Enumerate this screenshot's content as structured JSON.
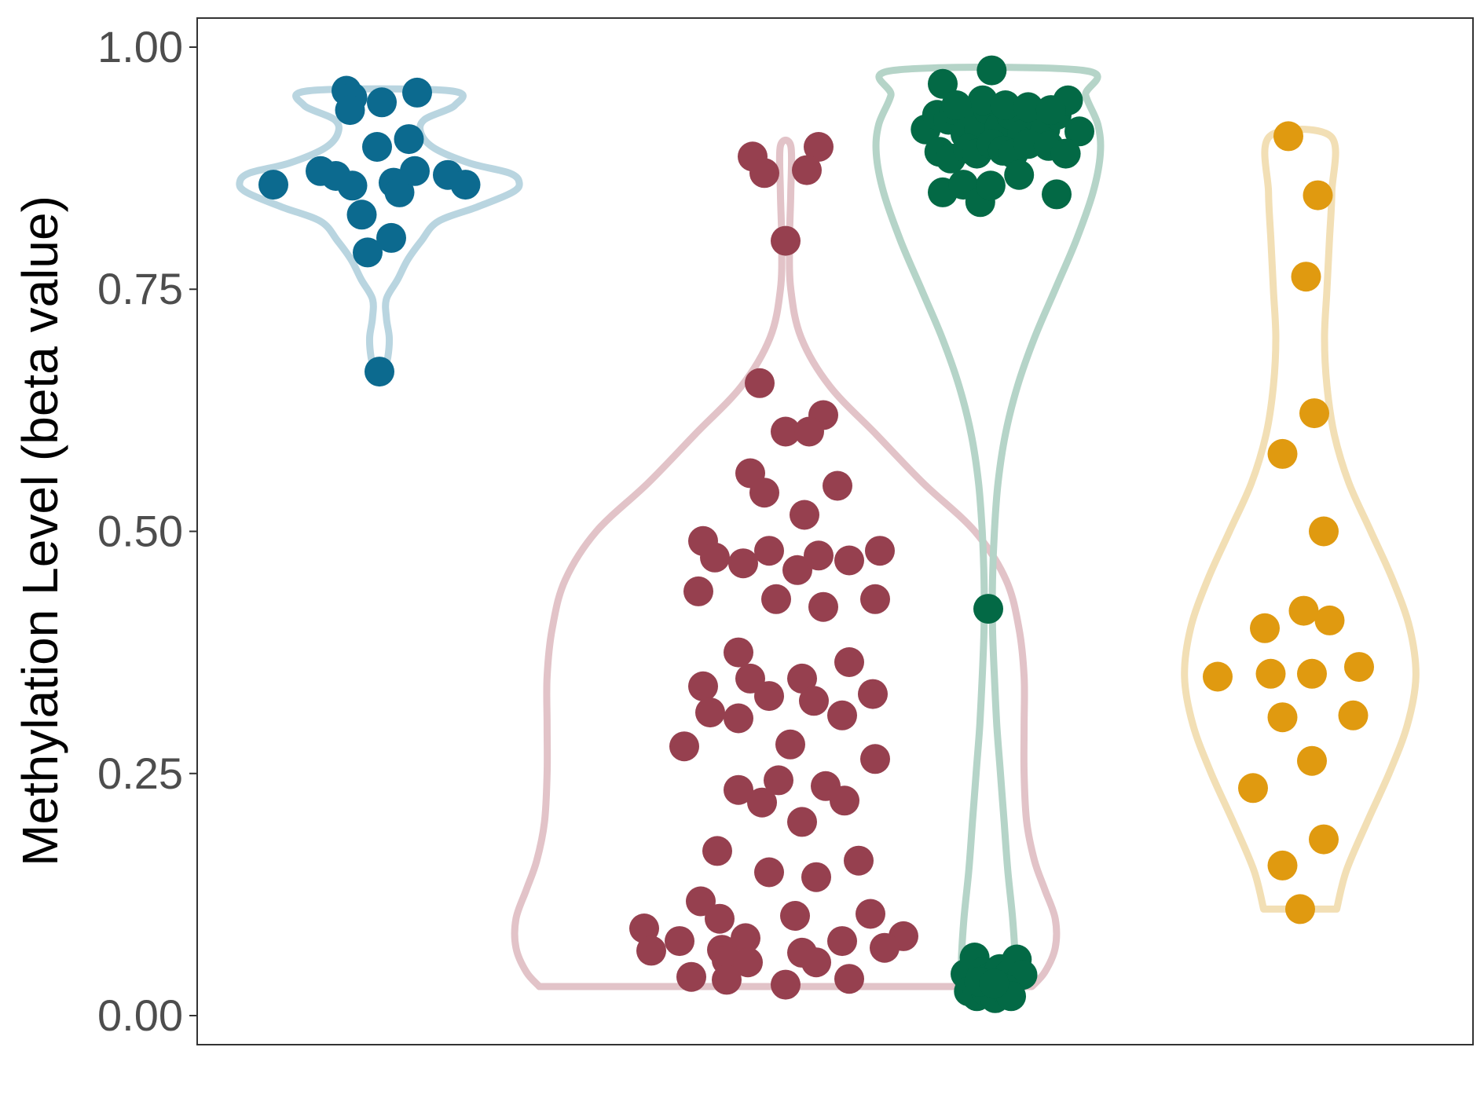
{
  "chart_data": {
    "type": "violin",
    "ylabel": "Methylation Level (beta value)",
    "xlabel": "",
    "ylim": [
      -0.03,
      1.03
    ],
    "yticks": [
      {
        "value": 0.0,
        "label": "0.00"
      },
      {
        "value": 0.25,
        "label": "0.25"
      },
      {
        "value": 0.5,
        "label": "0.50"
      },
      {
        "value": 0.75,
        "label": "0.75"
      },
      {
        "value": 1.0,
        "label": "1.00"
      }
    ],
    "grid": false,
    "legend": "none",
    "groups": [
      {
        "color": "#0c6a8f",
        "outline_color": "#b9d5e0",
        "points": [
          {
            "x": -0.28,
            "y": 0.955
          },
          {
            "x": -0.23,
            "y": 0.948
          },
          {
            "x": -0.25,
            "y": 0.935
          },
          {
            "x": 0.02,
            "y": 0.943
          },
          {
            "x": 0.32,
            "y": 0.953
          },
          {
            "x": 0.25,
            "y": 0.905
          },
          {
            "x": -0.02,
            "y": 0.897
          },
          {
            "x": -0.9,
            "y": 0.858
          },
          {
            "x": -0.5,
            "y": 0.872
          },
          {
            "x": -0.37,
            "y": 0.867
          },
          {
            "x": -0.23,
            "y": 0.857
          },
          {
            "x": 0.12,
            "y": 0.86
          },
          {
            "x": 0.17,
            "y": 0.85
          },
          {
            "x": 0.3,
            "y": 0.872
          },
          {
            "x": 0.58,
            "y": 0.868
          },
          {
            "x": 0.73,
            "y": 0.858
          },
          {
            "x": -0.15,
            "y": 0.827
          },
          {
            "x": 0.1,
            "y": 0.803
          },
          {
            "x": -0.1,
            "y": 0.788
          },
          {
            "x": 0.0,
            "y": 0.665
          }
        ],
        "density": [
          {
            "y": 0.663,
            "w": 0.03
          },
          {
            "y": 0.68,
            "w": 0.06
          },
          {
            "y": 0.7,
            "w": 0.07
          },
          {
            "y": 0.72,
            "w": 0.05
          },
          {
            "y": 0.74,
            "w": 0.05
          },
          {
            "y": 0.76,
            "w": 0.13
          },
          {
            "y": 0.78,
            "w": 0.2
          },
          {
            "y": 0.8,
            "w": 0.3
          },
          {
            "y": 0.82,
            "w": 0.42
          },
          {
            "y": 0.835,
            "w": 0.7
          },
          {
            "y": 0.85,
            "w": 0.95
          },
          {
            "y": 0.86,
            "w": 1.0
          },
          {
            "y": 0.87,
            "w": 0.93
          },
          {
            "y": 0.88,
            "w": 0.65
          },
          {
            "y": 0.895,
            "w": 0.4
          },
          {
            "y": 0.91,
            "w": 0.3
          },
          {
            "y": 0.925,
            "w": 0.32
          },
          {
            "y": 0.94,
            "w": 0.54
          },
          {
            "y": 0.955,
            "w": 0.5
          }
        ]
      },
      {
        "color": "#96404f",
        "outline_color": "#e2c3c8",
        "points": [
          {
            "x": -0.14,
            "y": 0.887
          },
          {
            "x": 0.14,
            "y": 0.897
          },
          {
            "x": -0.09,
            "y": 0.87
          },
          {
            "x": 0.09,
            "y": 0.873
          },
          {
            "x": 0.0,
            "y": 0.8
          },
          {
            "x": -0.11,
            "y": 0.653
          },
          {
            "x": 0.16,
            "y": 0.62
          },
          {
            "x": 0.0,
            "y": 0.603
          },
          {
            "x": 0.1,
            "y": 0.603
          },
          {
            "x": -0.15,
            "y": 0.56
          },
          {
            "x": -0.09,
            "y": 0.54
          },
          {
            "x": 0.22,
            "y": 0.547
          },
          {
            "x": 0.08,
            "y": 0.517
          },
          {
            "x": -0.35,
            "y": 0.49
          },
          {
            "x": -0.3,
            "y": 0.473
          },
          {
            "x": -0.18,
            "y": 0.467
          },
          {
            "x": -0.07,
            "y": 0.48
          },
          {
            "x": 0.05,
            "y": 0.46
          },
          {
            "x": 0.14,
            "y": 0.475
          },
          {
            "x": 0.27,
            "y": 0.47
          },
          {
            "x": 0.4,
            "y": 0.48
          },
          {
            "x": -0.37,
            "y": 0.438
          },
          {
            "x": -0.04,
            "y": 0.43
          },
          {
            "x": 0.16,
            "y": 0.422
          },
          {
            "x": 0.38,
            "y": 0.43
          },
          {
            "x": -0.2,
            "y": 0.375
          },
          {
            "x": 0.27,
            "y": 0.365
          },
          {
            "x": -0.35,
            "y": 0.34
          },
          {
            "x": -0.15,
            "y": 0.348
          },
          {
            "x": 0.07,
            "y": 0.348
          },
          {
            "x": -0.07,
            "y": 0.33
          },
          {
            "x": 0.12,
            "y": 0.325
          },
          {
            "x": 0.37,
            "y": 0.332
          },
          {
            "x": -0.32,
            "y": 0.313
          },
          {
            "x": -0.2,
            "y": 0.307
          },
          {
            "x": 0.24,
            "y": 0.31
          },
          {
            "x": -0.43,
            "y": 0.278
          },
          {
            "x": 0.02,
            "y": 0.28
          },
          {
            "x": 0.38,
            "y": 0.265
          },
          {
            "x": -0.2,
            "y": 0.233
          },
          {
            "x": -0.03,
            "y": 0.243
          },
          {
            "x": 0.17,
            "y": 0.237
          },
          {
            "x": -0.1,
            "y": 0.22
          },
          {
            "x": 0.25,
            "y": 0.222
          },
          {
            "x": 0.07,
            "y": 0.2
          },
          {
            "x": -0.29,
            "y": 0.17
          },
          {
            "x": 0.31,
            "y": 0.16
          },
          {
            "x": -0.07,
            "y": 0.148
          },
          {
            "x": 0.13,
            "y": 0.143
          },
          {
            "x": -0.36,
            "y": 0.118
          },
          {
            "x": -0.28,
            "y": 0.1
          },
          {
            "x": 0.04,
            "y": 0.103
          },
          {
            "x": 0.36,
            "y": 0.105
          },
          {
            "x": -0.6,
            "y": 0.09
          },
          {
            "x": -0.45,
            "y": 0.077
          },
          {
            "x": -0.17,
            "y": 0.08
          },
          {
            "x": 0.24,
            "y": 0.077
          },
          {
            "x": 0.5,
            "y": 0.082
          },
          {
            "x": -0.57,
            "y": 0.067
          },
          {
            "x": -0.27,
            "y": 0.068
          },
          {
            "x": 0.07,
            "y": 0.065
          },
          {
            "x": 0.42,
            "y": 0.07
          },
          {
            "x": -0.25,
            "y": 0.057
          },
          {
            "x": -0.16,
            "y": 0.055
          },
          {
            "x": 0.13,
            "y": 0.055
          },
          {
            "x": -0.4,
            "y": 0.04
          },
          {
            "x": -0.25,
            "y": 0.037
          },
          {
            "x": 0.0,
            "y": 0.032
          },
          {
            "x": 0.27,
            "y": 0.038
          }
        ],
        "density": [
          {
            "y": 0.03,
            "w": 0.95
          },
          {
            "y": 0.045,
            "w": 1.0
          },
          {
            "y": 0.07,
            "w": 1.04
          },
          {
            "y": 0.1,
            "w": 1.04
          },
          {
            "y": 0.13,
            "w": 1.0
          },
          {
            "y": 0.16,
            "w": 0.96
          },
          {
            "y": 0.2,
            "w": 0.93
          },
          {
            "y": 0.25,
            "w": 0.92
          },
          {
            "y": 0.3,
            "w": 0.92
          },
          {
            "y": 0.35,
            "w": 0.92
          },
          {
            "y": 0.4,
            "w": 0.9
          },
          {
            "y": 0.45,
            "w": 0.85
          },
          {
            "y": 0.5,
            "w": 0.73
          },
          {
            "y": 0.55,
            "w": 0.53
          },
          {
            "y": 0.6,
            "w": 0.35
          },
          {
            "y": 0.65,
            "w": 0.17
          },
          {
            "y": 0.7,
            "w": 0.06
          },
          {
            "y": 0.75,
            "w": 0.02
          },
          {
            "y": 0.8,
            "w": 0.015
          },
          {
            "y": 0.85,
            "w": 0.02
          },
          {
            "y": 0.898,
            "w": 0.02
          }
        ]
      },
      {
        "color": "#036945",
        "outline_color": "#b5d4c8",
        "points": [
          {
            "x": -0.4,
            "y": 0.962
          },
          {
            "x": 0.03,
            "y": 0.976
          },
          {
            "x": -0.55,
            "y": 0.915
          },
          {
            "x": -0.45,
            "y": 0.93
          },
          {
            "x": -0.35,
            "y": 0.925
          },
          {
            "x": -0.3,
            "y": 0.935
          },
          {
            "x": -0.2,
            "y": 0.91
          },
          {
            "x": -0.15,
            "y": 0.93
          },
          {
            "x": -0.08,
            "y": 0.915
          },
          {
            "x": 0.0,
            "y": 0.935
          },
          {
            "x": 0.1,
            "y": 0.918
          },
          {
            "x": 0.2,
            "y": 0.93
          },
          {
            "x": 0.3,
            "y": 0.91
          },
          {
            "x": 0.4,
            "y": 0.93
          },
          {
            "x": 0.5,
            "y": 0.915
          },
          {
            "x": 0.6,
            "y": 0.93
          },
          {
            "x": 0.7,
            "y": 0.945
          },
          {
            "x": -0.05,
            "y": 0.945
          },
          {
            "x": 0.15,
            "y": 0.94
          },
          {
            "x": 0.35,
            "y": 0.938
          },
          {
            "x": -0.28,
            "y": 0.94
          },
          {
            "x": 0.55,
            "y": 0.935
          },
          {
            "x": 0.8,
            "y": 0.913
          },
          {
            "x": -0.43,
            "y": 0.892
          },
          {
            "x": -0.33,
            "y": 0.885
          },
          {
            "x": -0.18,
            "y": 0.895
          },
          {
            "x": -0.1,
            "y": 0.89
          },
          {
            "x": 0.03,
            "y": 0.9
          },
          {
            "x": 0.13,
            "y": 0.893
          },
          {
            "x": 0.22,
            "y": 0.89
          },
          {
            "x": 0.35,
            "y": 0.9
          },
          {
            "x": 0.53,
            "y": 0.898
          },
          {
            "x": 0.68,
            "y": 0.89
          },
          {
            "x": -0.4,
            "y": 0.85
          },
          {
            "x": -0.22,
            "y": 0.858
          },
          {
            "x": -0.07,
            "y": 0.84
          },
          {
            "x": 0.02,
            "y": 0.857
          },
          {
            "x": 0.27,
            "y": 0.868
          },
          {
            "x": 0.6,
            "y": 0.848
          },
          {
            "x": 0.0,
            "y": 0.42
          },
          {
            "x": -0.2,
            "y": 0.043
          },
          {
            "x": -0.12,
            "y": 0.06
          },
          {
            "x": -0.05,
            "y": 0.045
          },
          {
            "x": 0.02,
            "y": 0.04
          },
          {
            "x": 0.1,
            "y": 0.048
          },
          {
            "x": 0.18,
            "y": 0.042
          },
          {
            "x": 0.25,
            "y": 0.058
          },
          {
            "x": 0.3,
            "y": 0.042
          },
          {
            "x": -0.17,
            "y": 0.025
          },
          {
            "x": -0.1,
            "y": 0.02
          },
          {
            "x": -0.02,
            "y": 0.025
          },
          {
            "x": 0.06,
            "y": 0.018
          },
          {
            "x": 0.14,
            "y": 0.028
          },
          {
            "x": 0.2,
            "y": 0.02
          },
          {
            "x": -0.08,
            "y": 0.035
          },
          {
            "x": 0.05,
            "y": 0.033
          }
        ],
        "density": [
          {
            "y": 0.015,
            "w": 0.2
          },
          {
            "y": 0.03,
            "w": 0.22
          },
          {
            "y": 0.06,
            "w": 0.22
          },
          {
            "y": 0.1,
            "w": 0.2
          },
          {
            "y": 0.15,
            "w": 0.16
          },
          {
            "y": 0.2,
            "w": 0.13
          },
          {
            "y": 0.25,
            "w": 0.1
          },
          {
            "y": 0.3,
            "w": 0.07
          },
          {
            "y": 0.35,
            "w": 0.05
          },
          {
            "y": 0.4,
            "w": 0.035
          },
          {
            "y": 0.45,
            "w": 0.035
          },
          {
            "y": 0.5,
            "w": 0.05
          },
          {
            "y": 0.55,
            "w": 0.08
          },
          {
            "y": 0.6,
            "w": 0.14
          },
          {
            "y": 0.65,
            "w": 0.24
          },
          {
            "y": 0.7,
            "w": 0.38
          },
          {
            "y": 0.75,
            "w": 0.55
          },
          {
            "y": 0.8,
            "w": 0.72
          },
          {
            "y": 0.85,
            "w": 0.86
          },
          {
            "y": 0.89,
            "w": 0.92
          },
          {
            "y": 0.92,
            "w": 0.9
          },
          {
            "y": 0.95,
            "w": 0.8
          },
          {
            "y": 0.976,
            "w": 0.78
          }
        ]
      },
      {
        "color": "#e09a10",
        "outline_color": "#f2dfb5",
        "points": [
          {
            "x": -0.1,
            "y": 0.908
          },
          {
            "x": 0.15,
            "y": 0.847
          },
          {
            "x": 0.05,
            "y": 0.763
          },
          {
            "x": 0.12,
            "y": 0.622
          },
          {
            "x": -0.15,
            "y": 0.58
          },
          {
            "x": 0.2,
            "y": 0.5
          },
          {
            "x": -0.3,
            "y": 0.4
          },
          {
            "x": 0.03,
            "y": 0.418
          },
          {
            "x": 0.25,
            "y": 0.408
          },
          {
            "x": -0.7,
            "y": 0.35
          },
          {
            "x": -0.25,
            "y": 0.353
          },
          {
            "x": 0.1,
            "y": 0.353
          },
          {
            "x": 0.5,
            "y": 0.36
          },
          {
            "x": -0.15,
            "y": 0.308
          },
          {
            "x": 0.45,
            "y": 0.31
          },
          {
            "x": 0.1,
            "y": 0.263
          },
          {
            "x": -0.4,
            "y": 0.235
          },
          {
            "x": 0.2,
            "y": 0.182
          },
          {
            "x": -0.15,
            "y": 0.155
          },
          {
            "x": 0.0,
            "y": 0.11
          }
        ],
        "density": [
          {
            "y": 0.11,
            "w": 0.3
          },
          {
            "y": 0.15,
            "w": 0.38
          },
          {
            "y": 0.2,
            "w": 0.55
          },
          {
            "y": 0.25,
            "w": 0.73
          },
          {
            "y": 0.3,
            "w": 0.88
          },
          {
            "y": 0.35,
            "w": 0.95
          },
          {
            "y": 0.4,
            "w": 0.9
          },
          {
            "y": 0.45,
            "w": 0.76
          },
          {
            "y": 0.5,
            "w": 0.58
          },
          {
            "y": 0.55,
            "w": 0.4
          },
          {
            "y": 0.6,
            "w": 0.28
          },
          {
            "y": 0.65,
            "w": 0.22
          },
          {
            "y": 0.7,
            "w": 0.2
          },
          {
            "y": 0.75,
            "w": 0.22
          },
          {
            "y": 0.8,
            "w": 0.24
          },
          {
            "y": 0.85,
            "w": 0.26
          },
          {
            "y": 0.908,
            "w": 0.25
          }
        ]
      }
    ]
  }
}
